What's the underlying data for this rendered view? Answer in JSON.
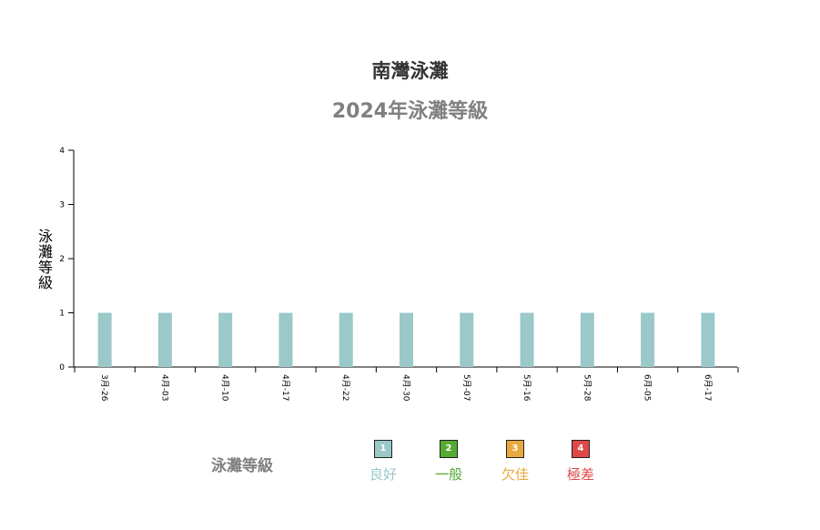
{
  "title": "南灣泳灘",
  "subtitle": "2024年泳灘等級",
  "legend": {
    "title": "泳灘等級",
    "items": [
      {
        "value": "1",
        "label": "良好",
        "color": "#9bc8c8"
      },
      {
        "value": "2",
        "label": "一般",
        "color": "#55aa33"
      },
      {
        "value": "3",
        "label": "欠佳",
        "color": "#e8a93c"
      },
      {
        "value": "4",
        "label": "極差",
        "color": "#e04848"
      }
    ]
  },
  "chart_data": {
    "type": "bar",
    "title": "2024年泳灘等級",
    "xlabel": "",
    "ylabel": "泳灘等級",
    "categories": [
      "3月-26",
      "4月-03",
      "4月-10",
      "4月-17",
      "4月-22",
      "4月-30",
      "5月-07",
      "5月-16",
      "5月-28",
      "6月-05",
      "6月-17"
    ],
    "series": [
      {
        "values": [
          1,
          1,
          1,
          1,
          1,
          1,
          1,
          1,
          1,
          1,
          1
        ]
      }
    ],
    "ylim": [
      0,
      4
    ],
    "yticks": [
      0,
      1,
      2,
      3,
      4
    ],
    "bar_color": "#9bc8c8",
    "grid": false,
    "legend_position": "bottom"
  }
}
